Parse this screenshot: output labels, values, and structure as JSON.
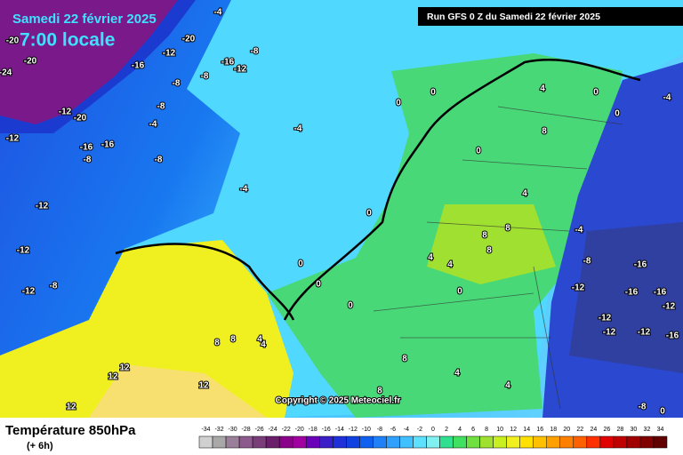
{
  "header": {
    "date": "Samedi 22 février 2025",
    "time": "7:00 locale",
    "run": "Run GFS 0 Z du Samedi 22 février 2025"
  },
  "copyright": "Copyright © 2025 Meteociel.fr",
  "legend": {
    "title": "Température 850hPa",
    "lead": "(+ 6h)",
    "steps": [
      {
        "value": -34,
        "color": "#d0d0d0"
      },
      {
        "value": -32,
        "color": "#a8a8a8"
      },
      {
        "value": -30,
        "color": "#9a7f9a"
      },
      {
        "value": -28,
        "color": "#8c5a8c"
      },
      {
        "value": -26,
        "color": "#7a3d7a"
      },
      {
        "value": -24,
        "color": "#6a1f6a"
      },
      {
        "value": -22,
        "color": "#8a008a"
      },
      {
        "value": -20,
        "color": "#a000a0"
      },
      {
        "value": -18,
        "color": "#6a00b8"
      },
      {
        "value": -16,
        "color": "#3a1ec8"
      },
      {
        "value": -14,
        "color": "#2030d8"
      },
      {
        "value": -12,
        "color": "#1040e0"
      },
      {
        "value": -10,
        "color": "#1060f0"
      },
      {
        "value": -8,
        "color": "#2080f8"
      },
      {
        "value": -6,
        "color": "#30a0ff"
      },
      {
        "value": -4,
        "color": "#40c0ff"
      },
      {
        "value": -2,
        "color": "#60e0ff"
      },
      {
        "value": 0,
        "color": "#80f0f0"
      },
      {
        "value": 2,
        "color": "#30e090"
      },
      {
        "value": 4,
        "color": "#40e060"
      },
      {
        "value": 6,
        "color": "#70e040"
      },
      {
        "value": 8,
        "color": "#a0e030"
      },
      {
        "value": 10,
        "color": "#c8f020"
      },
      {
        "value": 12,
        "color": "#f0f020"
      },
      {
        "value": 14,
        "color": "#ffe000"
      },
      {
        "value": 16,
        "color": "#ffc000"
      },
      {
        "value": 18,
        "color": "#ffa000"
      },
      {
        "value": 20,
        "color": "#ff8000"
      },
      {
        "value": 22,
        "color": "#ff6000"
      },
      {
        "value": 24,
        "color": "#ff3000"
      },
      {
        "value": 26,
        "color": "#e00000"
      },
      {
        "value": 28,
        "color": "#c00000"
      },
      {
        "value": 30,
        "color": "#a00000"
      },
      {
        "value": 32,
        "color": "#800000"
      },
      {
        "value": 34,
        "color": "#600000"
      }
    ]
  },
  "contour_labels": [
    -4,
    -20,
    -20,
    -24,
    -12,
    -20,
    -16,
    -12,
    -20,
    -16,
    -8,
    -12,
    -8,
    -8,
    -8,
    -4,
    -12,
    -16,
    -16,
    -8,
    -8,
    -4,
    -12,
    -12,
    -12,
    -8,
    -4,
    0,
    0,
    4,
    0,
    0,
    -4,
    8,
    0,
    4,
    0,
    8,
    8,
    8,
    4,
    4,
    0,
    0,
    0,
    0,
    -4,
    -8,
    -16,
    -12,
    -16,
    -16,
    -12,
    -12,
    -12,
    -12,
    -16,
    8,
    8,
    4,
    4,
    12,
    12,
    12,
    8,
    4,
    4,
    8,
    12,
    -8,
    0
  ]
}
